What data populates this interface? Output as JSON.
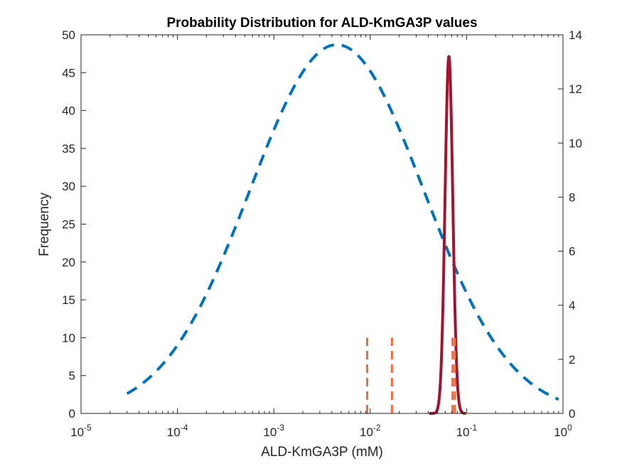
{
  "chart_data": {
    "type": "line",
    "title": "Probability Distribution for ALD-KmGA3P values",
    "xlabel": "ALD-KmGA3P (mM)",
    "ylabel": "Frequency",
    "xscale": "log",
    "xlim": [
      1e-05,
      1
    ],
    "x_ticks": [
      {
        "value": 1e-05,
        "base": "10",
        "exp": "-5"
      },
      {
        "value": 0.0001,
        "base": "10",
        "exp": "-4"
      },
      {
        "value": 0.001,
        "base": "10",
        "exp": "-3"
      },
      {
        "value": 0.01,
        "base": "10",
        "exp": "-2"
      },
      {
        "value": 0.1,
        "base": "10",
        "exp": "-1"
      },
      {
        "value": 1,
        "base": "10",
        "exp": "0"
      }
    ],
    "ylim_left": [
      0,
      50
    ],
    "y_ticks_left": [
      "0",
      "5",
      "10",
      "15",
      "20",
      "25",
      "30",
      "35",
      "40",
      "45",
      "50"
    ],
    "ylim_right": [
      0,
      14
    ],
    "y_ticks_right": [
      "0",
      "2",
      "4",
      "6",
      "8",
      "10",
      "12",
      "14"
    ],
    "grid": false,
    "series": [
      {
        "kind": "lognormal-curve",
        "axis": "left",
        "style": "dashed",
        "color": "#0072BD",
        "peak_x": 0.0045,
        "peak_y": 48.7,
        "sigma_log10": 0.9,
        "x_range": [
          3e-05,
          0.9
        ]
      },
      {
        "kind": "lognormal-curve",
        "axis": "right",
        "style": "solid",
        "color": "#A2142F",
        "peak_x": 0.0655,
        "peak_y": 13.2,
        "sigma_log10": 0.04,
        "x_range": [
          0.041,
          0.098
        ]
      },
      {
        "kind": "vertical-markers",
        "axis": "left",
        "style": "dashed",
        "color": "#F26B3A",
        "height": 10,
        "x": [
          0.0093,
          0.0168,
          0.0715,
          0.0755
        ]
      }
    ]
  }
}
